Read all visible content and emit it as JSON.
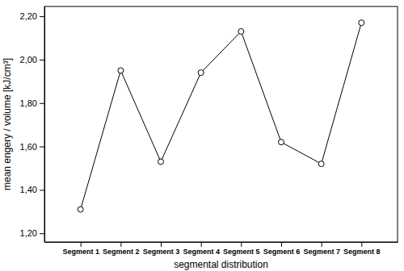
{
  "chart_data": {
    "type": "line",
    "x_label": "segmental distribution",
    "y_label": "mean engery / volume [kJ/cm³]",
    "categories": [
      "Segment 1",
      "Segment 2",
      "Segment 3",
      "Segment 4",
      "Segment 5",
      "Segment 6",
      "Segment 7",
      "Segment 8"
    ],
    "values": [
      1.31,
      1.95,
      1.53,
      1.94,
      2.13,
      1.62,
      1.52,
      2.17
    ],
    "color": "#000000",
    "marker": "circle",
    "ylim": [
      1.16,
      2.245
    ],
    "yticks": [
      {
        "value": 1.2,
        "label": "1,20"
      },
      {
        "value": 1.4,
        "label": "1,40"
      },
      {
        "value": 1.6,
        "label": "1,60"
      },
      {
        "value": 1.8,
        "label": "1,80"
      },
      {
        "value": 2.0,
        "label": "2,00"
      },
      {
        "value": 2.2,
        "label": "2,20"
      }
    ],
    "grid": false
  }
}
